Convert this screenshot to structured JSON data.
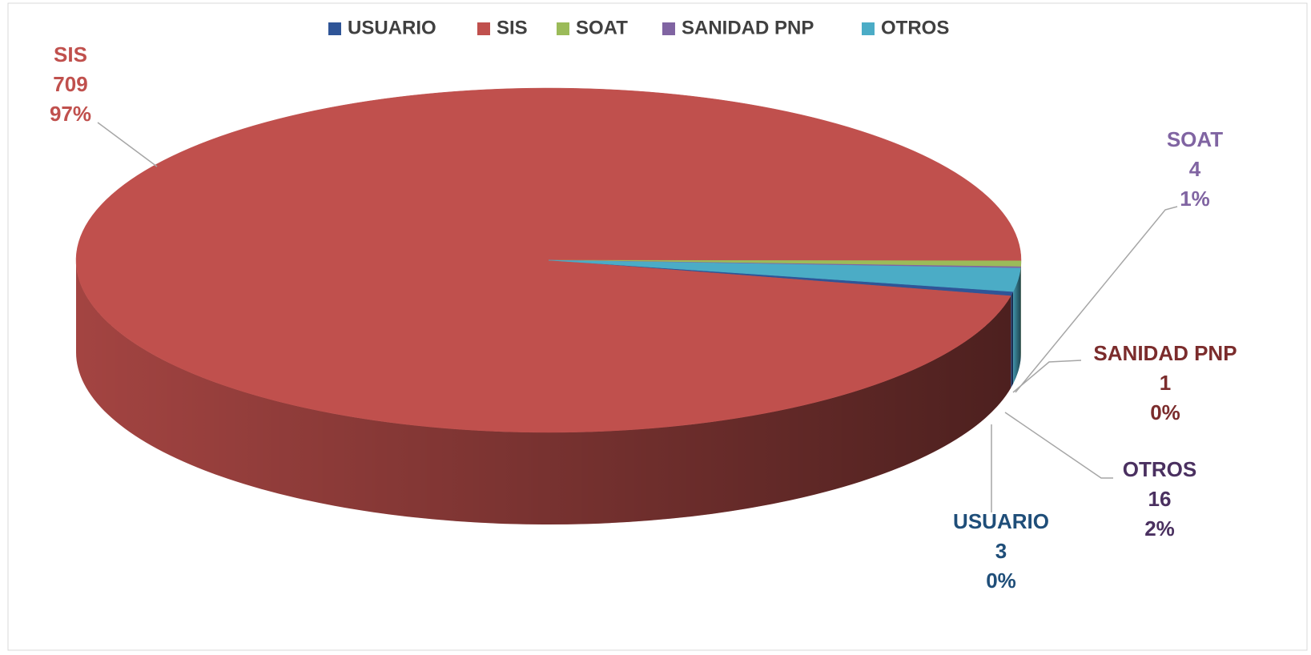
{
  "chart_data": {
    "type": "pie3d",
    "categories": [
      "USUARIO",
      "SIS",
      "SOAT",
      "SANIDAD PNP",
      "OTROS"
    ],
    "values": [
      3,
      709,
      4,
      1,
      16
    ],
    "percent_labels": [
      "0%",
      "97%",
      "1%",
      "0%",
      "2%"
    ],
    "colors": [
      "#2f5597",
      "#c0504d",
      "#9bbb59",
      "#8064a2",
      "#4bacc6"
    ],
    "label_colors": [
      "#1f4e79",
      "#c0504d",
      "#8064a2",
      "#7b2c2c",
      "#4a3060"
    ],
    "legend": "top"
  }
}
